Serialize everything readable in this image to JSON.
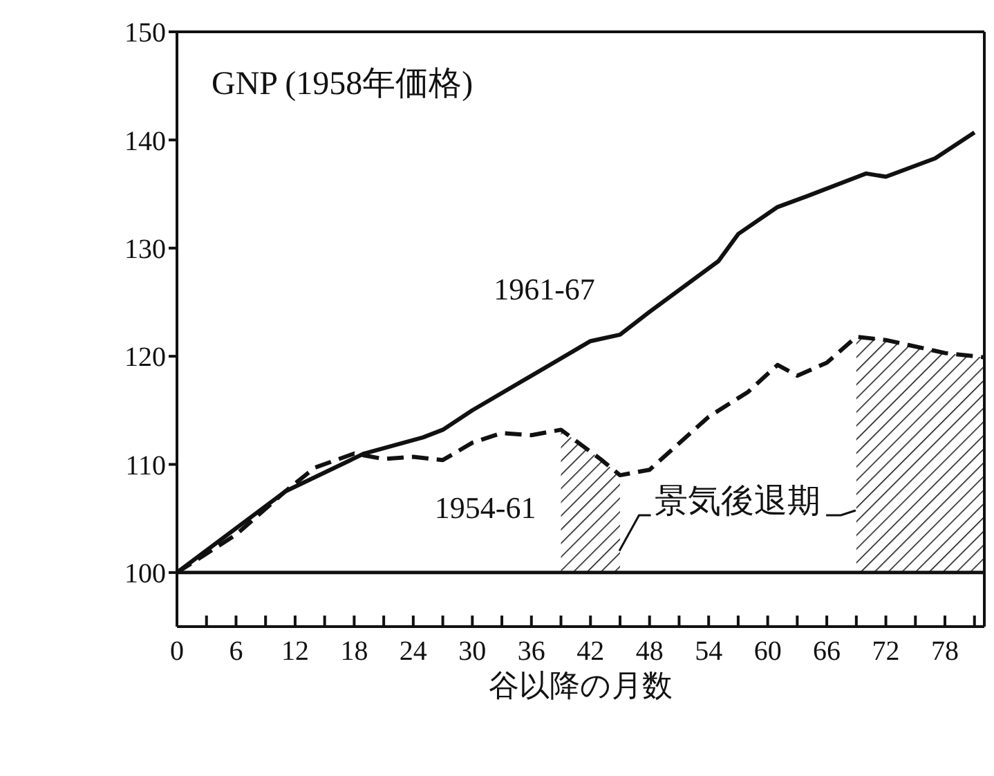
{
  "chart_data": {
    "type": "line",
    "title": "GNP (1958年価格)",
    "xlabel": "谷以降の月数",
    "xlim": [
      0,
      82
    ],
    "ylim": [
      95,
      150
    ],
    "xticks": [
      0,
      {
        "value": 3,
        "label": null
      },
      6,
      {
        "value": 9,
        "label": null
      },
      12,
      {
        "value": 15,
        "label": null
      },
      18,
      {
        "value": 21,
        "label": null
      },
      24,
      {
        "value": 27,
        "label": null
      },
      30,
      {
        "value": 33,
        "label": null
      },
      36,
      {
        "value": 39,
        "label": null
      },
      42,
      {
        "value": 45,
        "label": null
      },
      48,
      {
        "value": 51,
        "label": null
      },
      54,
      {
        "value": 57,
        "label": null
      },
      60,
      {
        "value": 63,
        "label": null
      },
      66,
      {
        "value": 69,
        "label": null
      },
      72,
      {
        "value": 75,
        "label": null
      },
      78,
      {
        "value": 81,
        "label": null
      }
    ],
    "yticks": [
      100,
      110,
      120,
      130,
      140,
      150
    ],
    "grid": false,
    "legend": false,
    "series": [
      {
        "name": "1961-67",
        "color": "#111111",
        "line_style": "solid",
        "x": [
          0,
          11,
          19,
          25,
          27,
          30,
          42,
          45,
          48,
          55,
          57,
          61,
          64,
          70,
          72,
          77,
          81
        ],
        "values": [
          100,
          107.5,
          111,
          112.5,
          113.2,
          115,
          121.4,
          122,
          124.1,
          128.8,
          131.3,
          133.8,
          134.8,
          136.9,
          136.6,
          138.3,
          140.7
        ]
      },
      {
        "name": "1954-61",
        "color": "#111111",
        "line_style": "dashed",
        "x": [
          0,
          6,
          11,
          14,
          18,
          21,
          24,
          27,
          30,
          33,
          36,
          39,
          43,
          45,
          48,
          54,
          58,
          61,
          63,
          66,
          69,
          72,
          78,
          82
        ],
        "values": [
          100,
          103.5,
          107.5,
          109.7,
          111,
          110.5,
          110.7,
          110.4,
          112,
          112.9,
          112.7,
          113.2,
          110.5,
          109,
          109.5,
          114.4,
          116.7,
          119.2,
          118.2,
          119.4,
          121.8,
          121.5,
          120.3,
          119.9
        ]
      }
    ],
    "bands": [
      {
        "axis": "x",
        "from": 39,
        "to": 45
      },
      {
        "axis": "x",
        "from": 69,
        "to": 82
      }
    ],
    "ref_lines": [
      {
        "axis": "y",
        "value": 100
      }
    ],
    "annotations": [
      "景気後退期"
    ]
  }
}
